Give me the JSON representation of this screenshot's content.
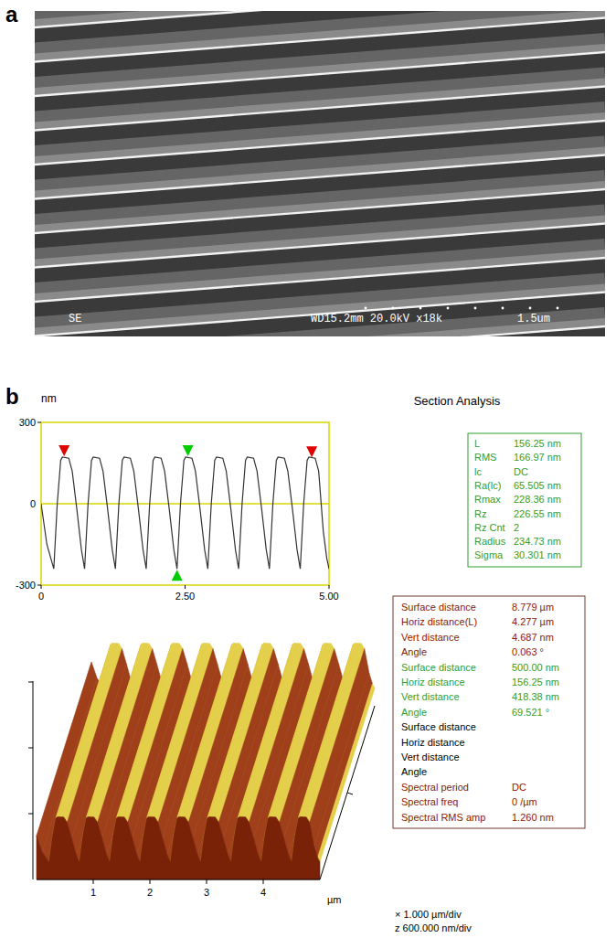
{
  "panel_letters": [
    "a",
    "b"
  ],
  "sem": {
    "detector": "SE",
    "info": "WD15.2mm 20.0kV x18k",
    "scale_bar_label": "1.5um"
  },
  "chart_data": {
    "type": "line",
    "title": "Section Analysis",
    "y_label": "nm",
    "x": [
      0,
      0.1,
      0.22,
      0.28,
      0.34,
      0.37,
      0.48,
      0.54,
      0.62,
      0.7,
      0.755,
      0.815,
      0.875,
      0.905,
      1.015,
      1.075,
      1.155,
      1.235,
      1.29,
      1.35,
      1.41,
      1.44,
      1.55,
      1.61,
      1.69,
      1.77,
      1.825,
      1.885,
      1.945,
      1.975,
      2.085,
      2.145,
      2.225,
      2.305,
      2.36,
      2.42,
      2.48,
      2.51,
      2.62,
      2.68,
      2.76,
      2.84,
      2.895,
      2.955,
      3.015,
      3.045,
      3.155,
      3.215,
      3.295,
      3.375,
      3.43,
      3.49,
      3.55,
      3.58,
      3.69,
      3.75,
      3.83,
      3.91,
      3.965,
      4.025,
      4.085,
      4.115,
      4.225,
      4.285,
      4.365,
      4.445,
      4.5,
      4.56,
      4.62,
      4.65,
      4.76,
      4.82,
      4.9,
      4.96,
      5.0
    ],
    "values": [
      0,
      -150,
      -240,
      0,
      160,
      172,
      168,
      120,
      -20,
      -170,
      -240,
      0,
      160,
      172,
      168,
      120,
      -20,
      -170,
      -240,
      0,
      160,
      172,
      168,
      120,
      -20,
      -170,
      -240,
      0,
      160,
      172,
      168,
      120,
      -20,
      -170,
      -240,
      0,
      160,
      172,
      168,
      120,
      -20,
      -170,
      -240,
      0,
      160,
      172,
      168,
      120,
      -20,
      -170,
      -240,
      0,
      160,
      172,
      168,
      120,
      -20,
      -170,
      -240,
      0,
      160,
      172,
      168,
      120,
      -20,
      -170,
      -240,
      0,
      160,
      172,
      168,
      120,
      -100,
      -200,
      -240
    ],
    "color": "#333333",
    "xlim": [
      0,
      5
    ],
    "ylim": [
      -300,
      300
    ],
    "xticks": [
      0,
      {
        "value": 2.5,
        "label": "2.50"
      },
      {
        "value": 5,
        "label": "5.00"
      }
    ],
    "yticks": [
      -300,
      0,
      300
    ],
    "grid": false,
    "cursors": [
      {
        "x": 0.4,
        "y": 172,
        "color": "#e00000",
        "direction": "down"
      },
      {
        "x": 2.55,
        "y": 172,
        "color": "#00cc00",
        "direction": "down"
      },
      {
        "x": 2.36,
        "y": -240,
        "color": "#00cc00",
        "direction": "up"
      },
      {
        "x": 4.7,
        "y": 168,
        "color": "#e00000",
        "direction": "down"
      }
    ]
  },
  "section_stats": [
    {
      "label": "L",
      "value": "156.25 nm"
    },
    {
      "label": "RMS",
      "value": "166.97 nm"
    },
    {
      "label": "lc",
      "value": "DC"
    },
    {
      "label": "Ra(lc)",
      "value": "65.505 nm"
    },
    {
      "label": "Rmax",
      "value": "228.36 nm"
    },
    {
      "label": "Rz",
      "value": "226.55 nm"
    },
    {
      "label": "Rz Cnt",
      "value": "2"
    },
    {
      "label": "Radius",
      "value": "234.73 nm"
    },
    {
      "label": "Sigma",
      "value": "30.301 nm"
    }
  ],
  "surface_3d": {
    "xticks": [
      1,
      2,
      3,
      4
    ],
    "xlim": [
      0,
      5
    ],
    "unit": "µm",
    "scale_x": "× 1.000 µm/div",
    "scale_z": "z 600.000 nm/div"
  },
  "measurements": [
    {
      "color": "#8b2000",
      "rows": [
        {
          "label": "Surface distance",
          "value": "8.779 µm"
        },
        {
          "label": "Horiz distance(L)",
          "value": "4.277 µm"
        },
        {
          "label": "Vert distance",
          "value": "4.687 nm"
        },
        {
          "label": "Angle",
          "value": "0.063 °"
        }
      ]
    },
    {
      "color": "#2e9e2e",
      "rows": [
        {
          "label": "Surface distance",
          "value": "500.00 nm"
        },
        {
          "label": "Horiz distance",
          "value": "156.25 nm"
        },
        {
          "label": "Vert distance",
          "value": "418.38 nm"
        },
        {
          "label": "Angle",
          "value": "69.521 °"
        }
      ]
    },
    {
      "color": "#000000",
      "rows": [
        {
          "label": "Surface distance"
        },
        {
          "label": "Horiz distance"
        },
        {
          "label": "Vert distance"
        },
        {
          "label": "Angle"
        }
      ]
    },
    {
      "color": "#8b2000",
      "rows": [
        {
          "label": "Spectral period",
          "value": "DC"
        },
        {
          "label": "Spectral freq",
          "value": "0 /µm"
        },
        {
          "label": "Spectral RMS amp",
          "value": "1.260 nm"
        }
      ]
    }
  ]
}
